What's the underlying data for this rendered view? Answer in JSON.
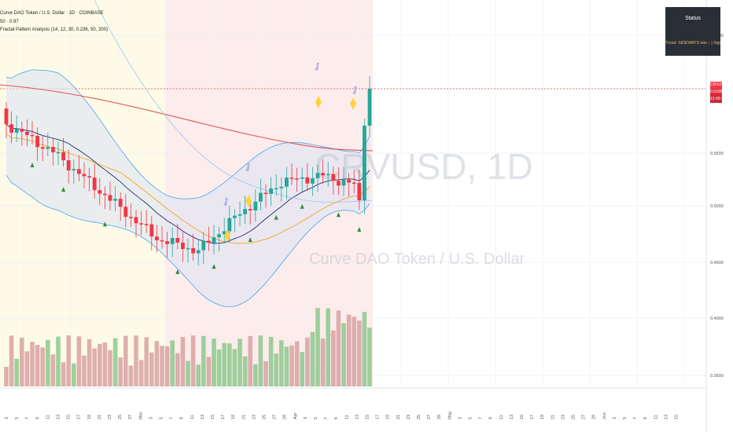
{
  "legend": {
    "symbol": "Curve DAO Token / U.S. Dollar · 1D · COINBASE",
    "line2": "50 · 0.97",
    "line3": "Fractal Pattern Analysis (14, 12, 30, 0.236, 50, 200)"
  },
  "watermark": {
    "ticker": "CRVUSD, 1D",
    "name": "Curve DAO Token / U.S. Dollar"
  },
  "status_panel": {
    "title": "Status",
    "text": "Trend: SIDEWAYS into ↓ | Signal: NEUTRAL"
  },
  "price_tag": {
    "symbol": "CRVUSD",
    "price": "0.6338",
    "countdown": "12:49:36"
  },
  "y_axis": {
    "ticks": [
      "0.6500",
      "0.5500",
      "0.5000",
      "0.4500",
      "0.4000",
      "0.3500"
    ]
  },
  "x_axis": {
    "labels": [
      "3",
      "5",
      "7",
      "9",
      "11",
      "13",
      "15",
      "17",
      "19",
      "21",
      "23",
      "25",
      "27",
      "Mar",
      "3",
      "5",
      "7",
      "9",
      "11",
      "13",
      "15",
      "17",
      "19",
      "21",
      "23",
      "25",
      "27",
      "29",
      "Apr",
      "3",
      "5",
      "7",
      "9",
      "11",
      "13",
      "15",
      "17",
      "19",
      "21",
      "23",
      "25",
      "27",
      "29",
      "May",
      "3",
      "5",
      "7",
      "9",
      "11",
      "13",
      "15",
      "17",
      "19",
      "21",
      "23",
      "25",
      "27",
      "29",
      "Jun",
      "3",
      "5",
      "7",
      "9",
      "11",
      "13",
      "15"
    ]
  },
  "annotations": {
    "markers": [
      "Bear",
      "Bear",
      "Bear",
      "Bear"
    ]
  },
  "colors": {
    "bull": "#26a69a",
    "bear": "#f23645",
    "zone_yellow": "#fdfbe7",
    "zone_red": "#fdecec",
    "band_fill": "#dde4f3",
    "ma200": "#e05353",
    "bb_line": "#4aa3f0",
    "ema_orange": "#f5a623",
    "ema_navy": "#262b6b",
    "diamond": "#ffd23f",
    "triangle": "#2e8b3a"
  }
}
